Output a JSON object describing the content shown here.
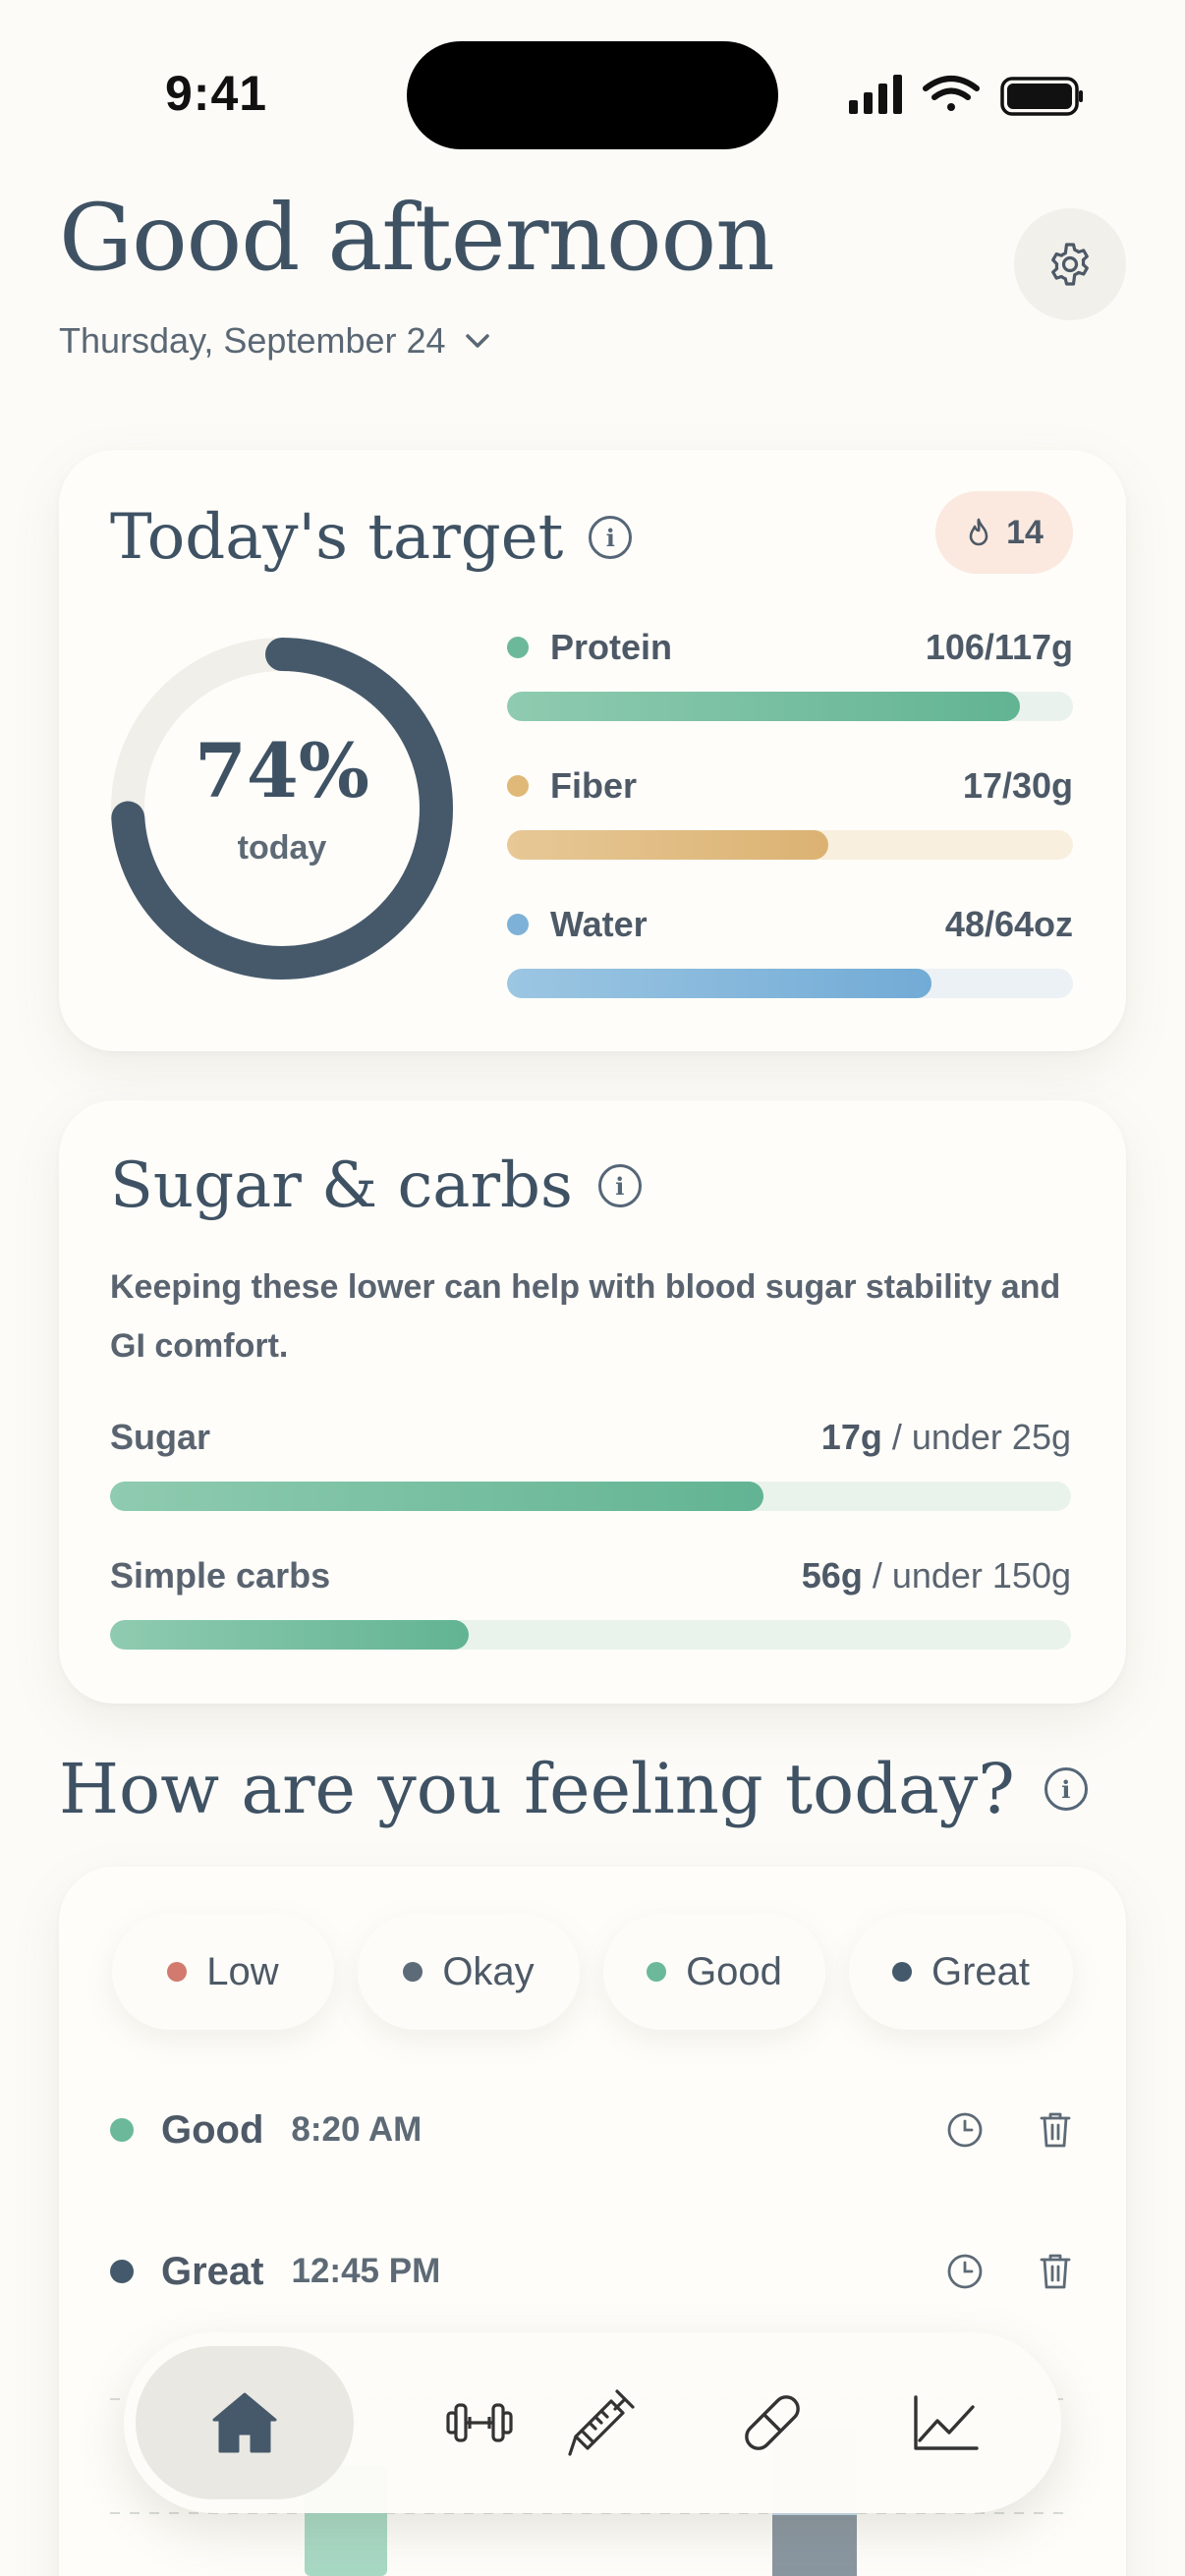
{
  "status": {
    "time": "9:41"
  },
  "header": {
    "greeting": "Good afternoon",
    "date": "Thursday, September 24"
  },
  "target": {
    "title": "Today's target",
    "streak": "14",
    "ring": {
      "percent_label": "74%",
      "sub": "today",
      "fraction": 0.74
    },
    "metrics": [
      {
        "name": "Protein",
        "value": "106/117g",
        "fraction": 0.906,
        "color": "#6bb99a"
      },
      {
        "name": "Fiber",
        "value": "17/30g",
        "fraction": 0.567,
        "color": "#e0b878"
      },
      {
        "name": "Water",
        "value": "48/64oz",
        "fraction": 0.75,
        "color": "#7eb1d8"
      }
    ]
  },
  "sugar": {
    "title": "Sugar & carbs",
    "description": "Keeping these lower can help with blood sugar stability and GI comfort.",
    "rows": [
      {
        "label": "Sugar",
        "amount": "17g",
        "limit": " / under 25g",
        "fraction": 0.68
      },
      {
        "label": "Simple carbs",
        "amount": "56g",
        "limit": " / under 150g",
        "fraction": 0.373
      }
    ]
  },
  "feeling": {
    "title": "How are you feeling today?",
    "options": [
      {
        "label": "Low",
        "color": "#d27a6e"
      },
      {
        "label": "Okay",
        "color": "#5d6a78"
      },
      {
        "label": "Good",
        "color": "#6bb99a"
      },
      {
        "label": "Great",
        "color": "#44596b"
      }
    ],
    "log": [
      {
        "mood": "Good",
        "time": "8:20 AM",
        "color": "#6bb99a"
      },
      {
        "mood": "Great",
        "time": "12:45 PM",
        "color": "#44596b"
      }
    ]
  },
  "nav": {
    "items": [
      "home-icon",
      "dumbbell-icon",
      "syringe-icon",
      "pill-icon",
      "chart-icon"
    ],
    "active": "home-icon"
  },
  "colors": {
    "accent": "#44596b",
    "background": "#fcfbf7",
    "green": "#6bb99a",
    "streak_bg": "#fbe9df"
  }
}
